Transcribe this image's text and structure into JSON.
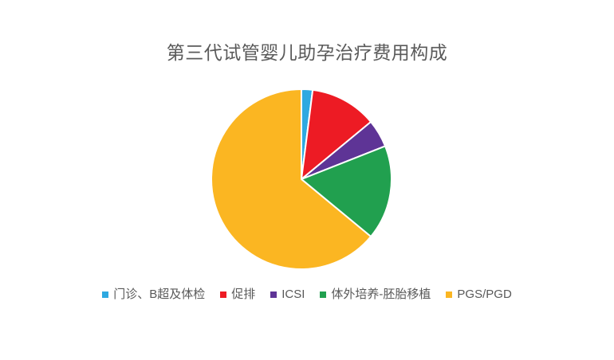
{
  "title": "第三代试管婴儿助孕治疗费用构成",
  "colors": {
    "background": "#ffffff",
    "text": "#595959",
    "slice_border": "#ffffff"
  },
  "chart_data": {
    "type": "pie",
    "title": "第三代试管婴儿助孕治疗费用构成",
    "unit": "percent_estimated_from_angles",
    "start_angle_deg": 0,
    "start_position": "top",
    "direction": "clockwise",
    "legend_position": "bottom",
    "data_labels_shown": false,
    "slices": [
      {
        "label": "门诊、B超及体检",
        "value": 2,
        "color": "#2ea9e1"
      },
      {
        "label": "促排",
        "value": 12,
        "color": "#ed1b24"
      },
      {
        "label": "ICSI",
        "value": 5,
        "color": "#5e3496"
      },
      {
        "label": "体外培养-胚胎移植",
        "value": 17,
        "color": "#21a04f"
      },
      {
        "label": "PGS/PGD",
        "value": 64,
        "color": "#fbb622"
      }
    ]
  }
}
